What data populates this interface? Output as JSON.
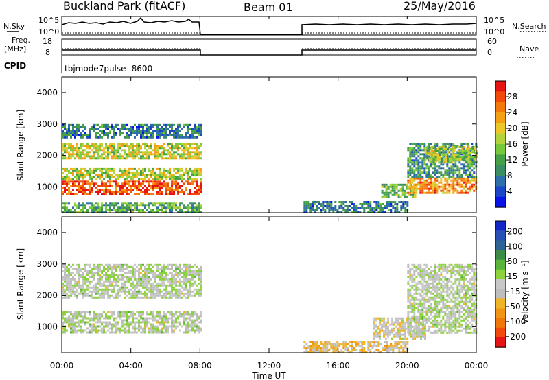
{
  "header": {
    "station": "Buckland Park (fitACF)",
    "beam": "Beam 01",
    "date": "25/May/2016"
  },
  "strip_labels": {
    "nsky": "N.Sky",
    "nsky_top": "10^5",
    "nsky_bottom": "10^0",
    "nsky_right_top": "10^5",
    "nsky_right_bottom": "10^0",
    "nsearch": "N.Search",
    "freq": "Freq.",
    "freq_unit": "[MHz]",
    "freq_top": "18",
    "freq_bottom": "8",
    "nave": "Nave",
    "nave_top": "60",
    "nave_bottom": "0",
    "cpid": "CPID",
    "cpid_value": "tbjmode7pulse  -8600"
  },
  "colors": {
    "power_scale": [
      "#0a14e6",
      "#1c46c8",
      "#2e6eaa",
      "#3c8c64",
      "#46a046",
      "#78c83c",
      "#b4d23c",
      "#ebc828",
      "#f5a014",
      "#f5780a",
      "#f04b0a",
      "#e61414"
    ],
    "velocity_scale": [
      "#1428c8",
      "#2850b4",
      "#2e6496",
      "#3c8c46",
      "#5ab43c",
      "#8cd23c",
      "#c8c8c8",
      "#bebebe",
      "#f0b428",
      "#f09614",
      "#f0780a",
      "#f04b0a",
      "#e61414"
    ]
  },
  "chart_data": [
    {
      "type": "heatmap",
      "panel": "power",
      "ylabel": "Slant Range [km]",
      "ylim": [
        180,
        4500
      ],
      "yticks": [
        1000,
        2000,
        3000,
        4000
      ],
      "xlim": [
        0,
        24
      ],
      "colorbar_label": "Power [dB]",
      "colorbar_range": [
        0,
        32
      ],
      "colorbar_ticks": [
        "4",
        "8",
        "12",
        "16",
        "20",
        "24",
        "28"
      ],
      "data_gap_hours": [
        8,
        14
      ],
      "echo_regions": [
        {
          "t": [
            0,
            8
          ],
          "range_km": [
            800,
            1200
          ],
          "power_db": 28
        },
        {
          "t": [
            0,
            8
          ],
          "range_km": [
            1250,
            1600
          ],
          "power_db": 17
        },
        {
          "t": [
            0,
            8
          ],
          "range_km": [
            1900,
            2400
          ],
          "power_db": 18
        },
        {
          "t": [
            0,
            8
          ],
          "range_km": [
            2600,
            3000
          ],
          "power_db": 8
        },
        {
          "t": [
            0,
            8
          ],
          "range_km": [
            200,
            500
          ],
          "power_db": 12
        },
        {
          "t": [
            14,
            20
          ],
          "range_km": [
            200,
            550
          ],
          "power_db": 8
        },
        {
          "t": [
            18.5,
            20.5
          ],
          "range_km": [
            650,
            1100
          ],
          "power_db": 14
        },
        {
          "t": [
            20,
            24
          ],
          "range_km": [
            800,
            1300
          ],
          "power_db": 24
        },
        {
          "t": [
            20,
            24
          ],
          "range_km": [
            1300,
            2400
          ],
          "power_db": 10
        },
        {
          "t": [
            21,
            24
          ],
          "range_km": [
            1800,
            2300
          ],
          "power_db": 16
        }
      ]
    },
    {
      "type": "heatmap",
      "panel": "velocity",
      "ylabel": "Slant Range [km]",
      "ylim": [
        180,
        4500
      ],
      "yticks": [
        1000,
        2000,
        3000,
        4000
      ],
      "xlim": [
        0,
        24
      ],
      "xticks": [
        "00:00",
        "04:00",
        "08:00",
        "12:00",
        "16:00",
        "20:00",
        "00:00"
      ],
      "xlabel": "Time UT",
      "colorbar_label": "Velocity [m s⁻¹]",
      "colorbar_range": [
        -250,
        250
      ],
      "colorbar_ticks": [
        "200",
        "100",
        "50",
        "15",
        "-15",
        "-50",
        "-100",
        "-200"
      ],
      "data_gap_hours": [
        8,
        14
      ],
      "echo_regions": [
        {
          "t": [
            0,
            8
          ],
          "range_km": [
            800,
            1500
          ],
          "velocity_ms": 0
        },
        {
          "t": [
            0,
            8
          ],
          "range_km": [
            1900,
            3000
          ],
          "velocity_ms": 0
        },
        {
          "t": [
            14,
            20
          ],
          "range_km": [
            200,
            550
          ],
          "velocity_ms": -60
        },
        {
          "t": [
            18,
            21
          ],
          "range_km": [
            600,
            1300
          ],
          "velocity_ms": -30
        },
        {
          "t": [
            20,
            24
          ],
          "range_km": [
            800,
            3000
          ],
          "velocity_ms": 0
        }
      ]
    }
  ]
}
